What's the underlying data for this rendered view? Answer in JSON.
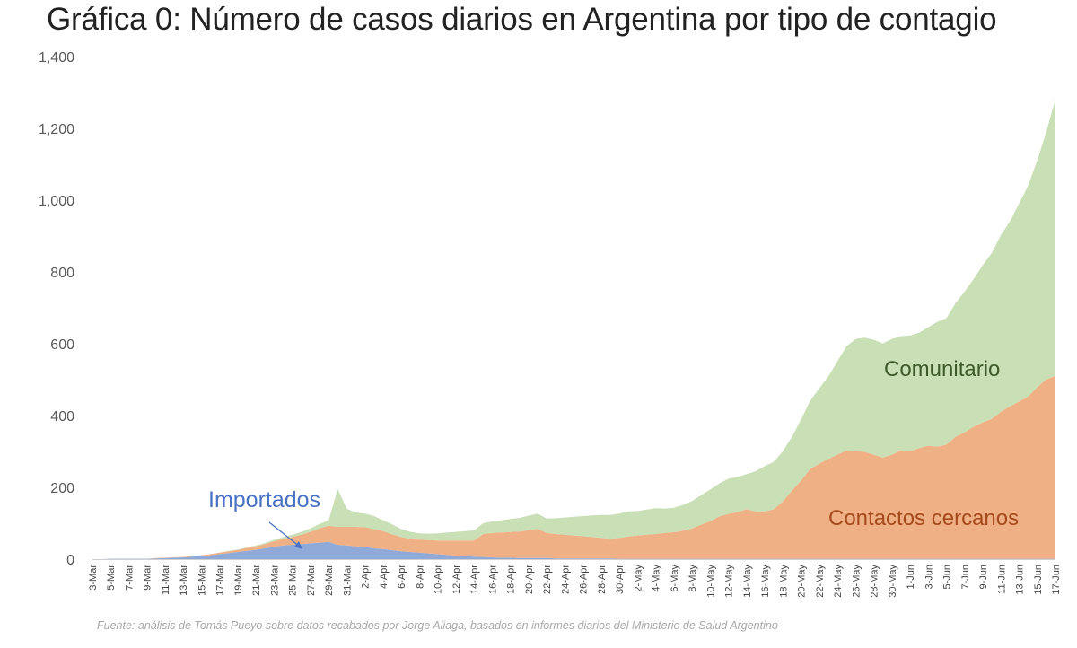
{
  "title": "Gráfica 0: Número de casos diarios en Argentina por tipo de contagio",
  "source": "Fuente: análisis de Tomás Pueyo sobre datos recabados por Jorge Aliaga, basados en informes diarios del Ministerio de Salud Argentino",
  "colors": {
    "importados": "#8fa9d9",
    "cercanos": "#efb086",
    "comunitario": "#c9dfb5",
    "label_importados": "#4a72c4",
    "label_cercanos": "#a54a1c",
    "label_comunitario": "#3e5a2a",
    "axis_text": "#595959"
  },
  "chart_data": {
    "type": "area",
    "stacked": true,
    "title": "Gráfica 0: Número de casos diarios en Argentina por tipo de contagio",
    "ylim": [
      0,
      1400
    ],
    "y_ticks": [
      "0",
      "200",
      "400",
      "600",
      "800",
      "1,000",
      "1,200",
      "1,400"
    ],
    "y_tick_values": [
      0,
      200,
      400,
      600,
      800,
      1000,
      1200,
      1400
    ],
    "grid": false,
    "x": [
      "3-Mar",
      "4-Mar",
      "5-Mar",
      "6-Mar",
      "7-Mar",
      "8-Mar",
      "9-Mar",
      "10-Mar",
      "11-Mar",
      "12-Mar",
      "13-Mar",
      "14-Mar",
      "15-Mar",
      "16-Mar",
      "17-Mar",
      "18-Mar",
      "19-Mar",
      "20-Mar",
      "21-Mar",
      "22-Mar",
      "23-Mar",
      "24-Mar",
      "25-Mar",
      "26-Mar",
      "27-Mar",
      "28-Mar",
      "29-Mar",
      "30-Mar",
      "31-Mar",
      "1-Apr",
      "2-Apr",
      "3-Apr",
      "4-Apr",
      "5-Apr",
      "6-Apr",
      "7-Apr",
      "8-Apr",
      "9-Apr",
      "10-Apr",
      "11-Apr",
      "12-Apr",
      "13-Apr",
      "14-Apr",
      "15-Apr",
      "16-Apr",
      "17-Apr",
      "18-Apr",
      "19-Apr",
      "20-Apr",
      "21-Apr",
      "22-Apr",
      "23-Apr",
      "24-Apr",
      "25-Apr",
      "26-Apr",
      "27-Apr",
      "28-Apr",
      "29-Apr",
      "30-Apr",
      "1-May",
      "2-May",
      "3-May",
      "4-May",
      "5-May",
      "6-May",
      "7-May",
      "8-May",
      "9-May",
      "10-May",
      "11-May",
      "12-May",
      "13-May",
      "14-May",
      "15-May",
      "16-May",
      "17-May",
      "18-May",
      "19-May",
      "20-May",
      "21-May",
      "22-May",
      "23-May",
      "24-May",
      "25-May",
      "26-May",
      "27-May",
      "28-May",
      "29-May",
      "30-May",
      "31-May",
      "1-Jun",
      "2-Jun",
      "3-Jun",
      "4-Jun",
      "5-Jun",
      "6-Jun",
      "7-Jun",
      "8-Jun",
      "9-Jun",
      "10-Jun",
      "11-Jun",
      "12-Jun",
      "13-Jun",
      "14-Jun",
      "15-Jun",
      "16-Jun",
      "17-Jun"
    ],
    "x_tick_labels": [
      "3-Mar",
      "5-Mar",
      "7-Mar",
      "9-Mar",
      "11-Mar",
      "13-Mar",
      "15-Mar",
      "17-Mar",
      "19-Mar",
      "21-Mar",
      "23-Mar",
      "25-Mar",
      "27-Mar",
      "29-Mar",
      "31-Mar",
      "2-Apr",
      "4-Apr",
      "6-Apr",
      "8-Apr",
      "10-Apr",
      "12-Apr",
      "14-Apr",
      "16-Apr",
      "18-Apr",
      "20-Apr",
      "22-Apr",
      "24-Apr",
      "26-Apr",
      "28-Apr",
      "30-Apr",
      "2-May",
      "4-May",
      "6-May",
      "8-May",
      "10-May",
      "12-May",
      "14-May",
      "16-May",
      "18-May",
      "20-May",
      "22-May",
      "24-May",
      "26-May",
      "28-May",
      "30-May",
      "1-Jun",
      "3-Jun",
      "5-Jun",
      "7-Jun",
      "9-Jun",
      "11-Jun",
      "13-Jun",
      "15-Jun",
      "17-Jun"
    ],
    "series": [
      {
        "name": "Importados",
        "values": [
          0,
          0,
          1,
          1,
          1,
          1,
          1,
          2,
          3,
          4,
          5,
          7,
          9,
          11,
          14,
          17,
          20,
          23,
          26,
          30,
          35,
          38,
          40,
          42,
          44,
          46,
          48,
          40,
          38,
          36,
          34,
          30,
          28,
          25,
          22,
          20,
          18,
          16,
          14,
          12,
          10,
          8,
          7,
          6,
          5,
          4,
          4,
          3,
          3,
          3,
          3,
          2,
          2,
          2,
          2,
          2,
          2,
          2,
          1,
          1,
          1,
          1,
          1,
          1,
          1,
          1,
          1,
          1,
          1,
          1,
          1,
          1,
          1,
          1,
          1,
          1,
          1,
          1,
          1,
          1,
          1,
          1,
          1,
          1,
          1,
          1,
          1,
          1,
          1,
          1,
          1,
          1,
          1,
          1,
          1,
          1,
          1,
          1,
          1,
          1,
          1,
          1,
          1,
          1,
          1,
          1,
          1
        ]
      },
      {
        "name": "Contactos cercanos",
        "values": [
          0,
          0,
          0,
          0,
          0,
          0,
          0,
          1,
          1,
          1,
          1,
          2,
          2,
          3,
          4,
          5,
          6,
          8,
          10,
          12,
          15,
          18,
          22,
          26,
          32,
          40,
          45,
          50,
          52,
          54,
          55,
          54,
          50,
          44,
          40,
          36,
          36,
          37,
          38,
          40,
          42,
          44,
          45,
          64,
          68,
          70,
          72,
          74,
          78,
          82,
          70,
          68,
          66,
          64,
          62,
          60,
          57,
          55,
          58,
          62,
          65,
          67,
          69,
          72,
          74,
          78,
          85,
          95,
          105,
          118,
          125,
          130,
          138,
          132,
          132,
          138,
          160,
          190,
          218,
          250,
          265,
          278,
          290,
          302,
          300,
          298,
          290,
          282,
          290,
          302,
          300,
          308,
          315,
          312,
          318,
          340,
          352,
          368,
          380,
          390,
          410,
          425,
          438,
          452,
          478,
          500,
          510
        ]
      },
      {
        "name": "Comunitario",
        "values": [
          0,
          0,
          0,
          0,
          0,
          0,
          0,
          0,
          0,
          0,
          0,
          0,
          0,
          0,
          0,
          1,
          1,
          2,
          2,
          3,
          4,
          5,
          6,
          8,
          10,
          12,
          15,
          105,
          50,
          40,
          38,
          36,
          30,
          28,
          22,
          20,
          18,
          18,
          20,
          22,
          24,
          26,
          28,
          30,
          32,
          34,
          36,
          38,
          40,
          42,
          40,
          44,
          48,
          52,
          56,
          60,
          64,
          66,
          68,
          70,
          68,
          70,
          72,
          68,
          68,
          72,
          76,
          82,
          88,
          92,
          98,
          98,
          98,
          112,
          126,
          132,
          140,
          150,
          170,
          190,
          210,
          230,
          260,
          290,
          312,
          318,
          320,
          318,
          322,
          318,
          322,
          322,
          330,
          348,
          352,
          372,
          392,
          412,
          438,
          462,
          492,
          515,
          552,
          588,
          632,
          690,
          770
        ]
      }
    ],
    "annotations": [
      {
        "text": "Importados",
        "color": "label_importados"
      },
      {
        "text": "Contactos cercanos",
        "color": "label_cercanos"
      },
      {
        "text": "Comunitario",
        "color": "label_comunitario"
      }
    ]
  }
}
